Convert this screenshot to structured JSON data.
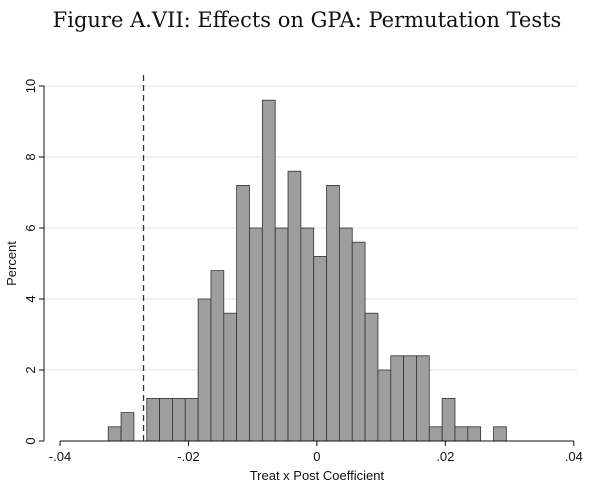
{
  "figure_title": "Figure A.VII: Effects on GPA: Permutation Tests",
  "chart_data": {
    "type": "bar",
    "title": "Figure A.VII: Effects on GPA: Permutation Tests",
    "xlabel": "Treat x Post Coefficient",
    "ylabel": "Percent",
    "xlim": [
      -0.04,
      0.04
    ],
    "ylim": [
      0,
      10
    ],
    "xticks": [
      -0.04,
      -0.02,
      0,
      0.02,
      0.04
    ],
    "xtick_labels": [
      "-.04",
      "-.02",
      "0",
      ".02",
      ".04"
    ],
    "yticks": [
      0,
      2,
      4,
      6,
      8,
      10
    ],
    "ytick_labels": [
      "0",
      "2",
      "4",
      "6",
      "8",
      "10"
    ],
    "grid": true,
    "bar_color": "#9e9e9e",
    "bar_edge_color": "#333333",
    "bin_width": 0.002,
    "bin_centers": [
      -0.0315,
      -0.0295,
      -0.0255,
      -0.0235,
      -0.0215,
      -0.0195,
      -0.0175,
      -0.0155,
      -0.0135,
      -0.0115,
      -0.0095,
      -0.0075,
      -0.0055,
      -0.0035,
      -0.0015,
      0.0005,
      0.0025,
      0.0045,
      0.0065,
      0.0085,
      0.0105,
      0.0125,
      0.0145,
      0.0165,
      0.0185,
      0.0205,
      0.0225,
      0.0245,
      0.0285
    ],
    "values": [
      0.4,
      0.8,
      1.2,
      1.2,
      1.2,
      1.2,
      4.0,
      4.8,
      3.6,
      7.2,
      6.0,
      9.6,
      6.0,
      7.6,
      6.0,
      5.2,
      7.2,
      6.0,
      5.6,
      3.6,
      2.0,
      2.4,
      2.4,
      2.4,
      0.4,
      1.2,
      0.4,
      0.4,
      0.4
    ],
    "reference_line": {
      "x": -0.027,
      "style": "dashed"
    }
  }
}
